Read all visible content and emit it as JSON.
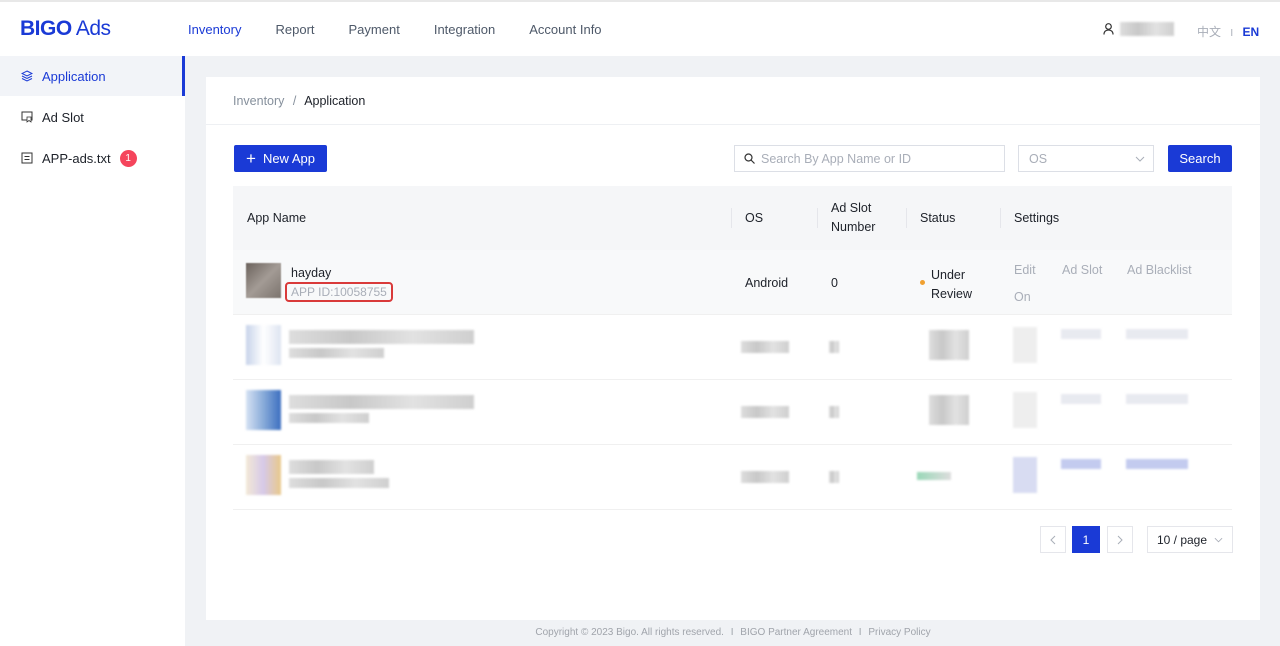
{
  "header": {
    "logo": "BIGO Ads",
    "logo_bold": "BIGO",
    "logo_rest": "Ads",
    "nav": [
      {
        "label": "Inventory",
        "active": true
      },
      {
        "label": "Report"
      },
      {
        "label": "Payment"
      },
      {
        "label": "Integration"
      },
      {
        "label": "Account Info"
      }
    ],
    "lang_zh": "中文",
    "lang_sep": "I",
    "lang_en": "EN"
  },
  "sidebar": {
    "items": [
      {
        "label": "Application",
        "icon": "layers-icon",
        "active": true
      },
      {
        "label": "Ad Slot",
        "icon": "ad-slot-icon"
      },
      {
        "label": "APP-ads.txt",
        "icon": "document-icon",
        "badge": "1"
      }
    ]
  },
  "breadcrumb": {
    "parent": "Inventory",
    "sep": "/",
    "current": "Application"
  },
  "toolbar": {
    "new_app": "New App",
    "search_placeholder": "Search By App Name or ID",
    "os_placeholder": "OS",
    "search_button": "Search"
  },
  "table": {
    "headers": [
      "App Name",
      "OS",
      "Ad Slot Number",
      "Status",
      "Settings"
    ],
    "rows": [
      {
        "name": "hayday",
        "app_id": "APP ID:10058755",
        "os": "Android",
        "ad_slot_number": "0",
        "status": "Under Review",
        "status_color": "#f0a030",
        "actions": [
          "Edit",
          "Ad Slot",
          "Ad Blacklist",
          "On"
        ]
      }
    ]
  },
  "pagination": {
    "current": "1",
    "page_size": "10 / page"
  },
  "footer": {
    "copyright": "Copyright © 2023 Bigo. All rights reserved.",
    "sep": "I",
    "agreement": "BIGO Partner Agreement",
    "privacy": "Privacy Policy"
  },
  "colors": {
    "accent": "#1a3ad6",
    "badge": "#f5455c",
    "highlight_box": "#d93a3a"
  }
}
